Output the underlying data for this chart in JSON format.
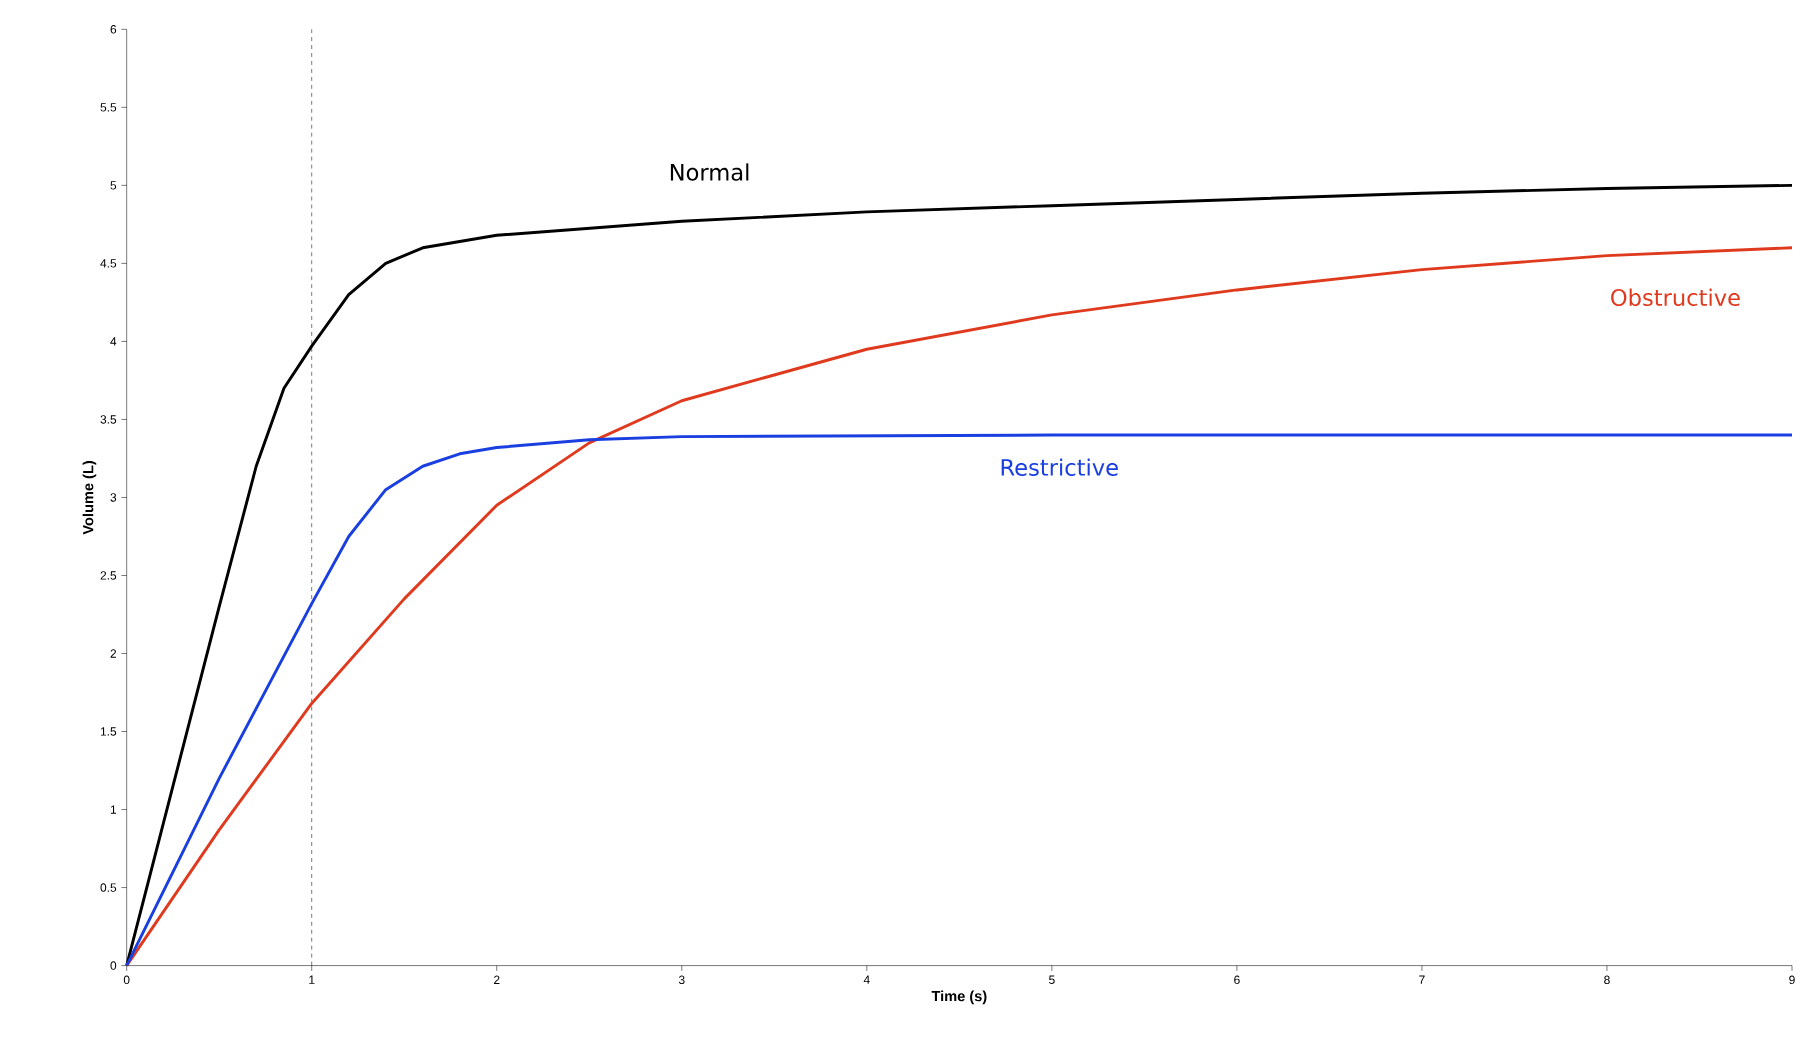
{
  "chart_data": {
    "type": "line",
    "xlabel": "Time (s)",
    "ylabel": "Volume (L)",
    "xlim": [
      0,
      9
    ],
    "ylim": [
      0,
      6
    ],
    "xticks": [
      0,
      1,
      2,
      3,
      4,
      5,
      6,
      7,
      8,
      9
    ],
    "yticks": [
      0,
      0.5,
      1,
      1.5,
      2,
      2.5,
      3,
      3.5,
      4,
      4.5,
      5,
      5.5,
      6
    ],
    "grid": false,
    "legend": false,
    "marker": "none",
    "line_style": "solid",
    "series": [
      {
        "name": "Normal",
        "color": "#000000",
        "x": [
          0,
          0.25,
          0.5,
          0.7,
          0.85,
          1,
          1.2,
          1.4,
          1.6,
          2,
          3,
          4,
          5,
          6,
          7,
          8,
          9
        ],
        "values": [
          0,
          1.15,
          2.3,
          3.2,
          3.7,
          3.97,
          4.3,
          4.5,
          4.6,
          4.68,
          4.77,
          4.83,
          4.87,
          4.91,
          4.95,
          4.98,
          5.0
        ]
      },
      {
        "name": "Obstructive",
        "color": "#e03a1e",
        "x": [
          0,
          0.5,
          1,
          1.5,
          2,
          2.5,
          3,
          4,
          5,
          6,
          7,
          8,
          9
        ],
        "values": [
          0,
          0.87,
          1.68,
          2.35,
          2.95,
          3.35,
          3.62,
          3.95,
          4.17,
          4.33,
          4.46,
          4.55,
          4.6
        ]
      },
      {
        "name": "Restrictive",
        "color": "#1a3fe0",
        "x": [
          0,
          0.5,
          1,
          1.2,
          1.4,
          1.6,
          1.8,
          2,
          2.5,
          3,
          5,
          9
        ],
        "values": [
          0,
          1.2,
          2.32,
          2.75,
          3.05,
          3.2,
          3.28,
          3.32,
          3.37,
          3.39,
          3.4,
          3.4
        ]
      }
    ],
    "ref_lines": [
      {
        "axis": "x",
        "value": 1,
        "color": "#000000",
        "line_style": "dashed"
      }
    ]
  }
}
